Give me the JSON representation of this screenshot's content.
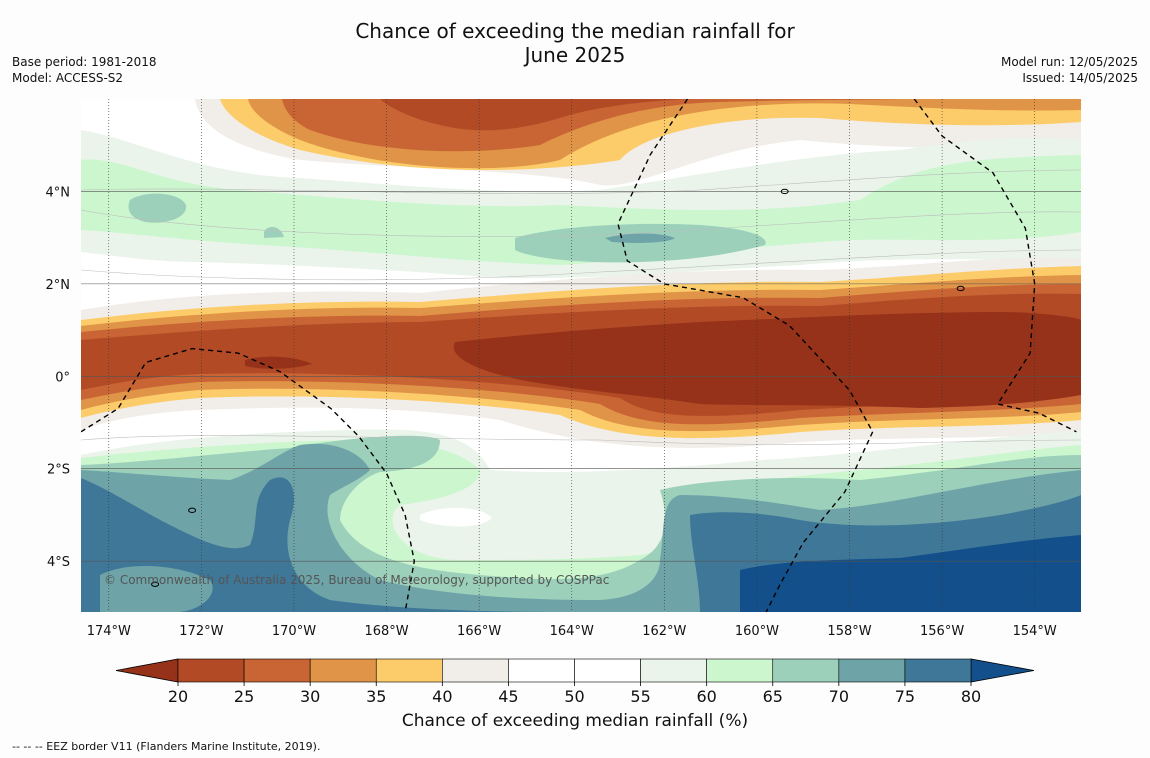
{
  "title": {
    "line1": "Chance of exceeding the median rainfall for",
    "line2": "June 2025"
  },
  "meta_left": {
    "base_period": "Base period: 1981-2018",
    "model": "Model: ACCESS-S2"
  },
  "meta_right": {
    "model_run": "Model run: 12/05/2025",
    "issued": "Issued: 14/05/2025"
  },
  "map": {
    "lon_range": [
      -174.6,
      -153.0
    ],
    "lat_range": [
      -5.1,
      6.0
    ],
    "lon_ticks": [
      {
        "v": -174,
        "label": "174°W"
      },
      {
        "v": -172,
        "label": "172°W"
      },
      {
        "v": -170,
        "label": "170°W"
      },
      {
        "v": -168,
        "label": "168°W"
      },
      {
        "v": -166,
        "label": "166°W"
      },
      {
        "v": -164,
        "label": "164°W"
      },
      {
        "v": -162,
        "label": "162°W"
      },
      {
        "v": -160,
        "label": "160°W"
      },
      {
        "v": -158,
        "label": "158°W"
      },
      {
        "v": -156,
        "label": "156°W"
      },
      {
        "v": -154,
        "label": "154°W"
      }
    ],
    "lat_ticks": [
      {
        "v": 4,
        "label": "4°N"
      },
      {
        "v": 2,
        "label": "2°N"
      },
      {
        "v": 0,
        "label": "0°"
      },
      {
        "v": -2,
        "label": "2°S"
      },
      {
        "v": -4,
        "label": "4°S"
      }
    ],
    "copyright": "© Commonwealth of Australia 2025, Bureau of Meteorology, supported by COSPPac",
    "eez_border": [
      [
        -174.6,
        -1.2
      ],
      [
        -173.8,
        -0.7
      ],
      [
        -173.2,
        0.3
      ],
      [
        -172.2,
        0.6
      ],
      [
        -171.2,
        0.5
      ],
      [
        -170.3,
        0.1
      ],
      [
        -169.2,
        -0.7
      ],
      [
        -168.6,
        -1.3
      ],
      [
        -168.0,
        -2.1
      ],
      [
        -167.6,
        -3.0
      ],
      [
        -167.4,
        -4.0
      ],
      [
        -167.6,
        -5.1
      ]
    ],
    "eez_border_2": [
      [
        -161.5,
        6.0
      ],
      [
        -162.3,
        4.8
      ],
      [
        -163.0,
        3.3
      ],
      [
        -162.8,
        2.5
      ],
      [
        -162.0,
        2.0
      ],
      [
        -160.3,
        1.7
      ],
      [
        -159.3,
        1.1
      ],
      [
        -158.0,
        -0.3
      ],
      [
        -157.5,
        -1.2
      ],
      [
        -158.1,
        -2.5
      ],
      [
        -159.0,
        -3.6
      ],
      [
        -159.5,
        -4.5
      ],
      [
        -159.8,
        -5.1
      ]
    ],
    "eez_border_3": [
      [
        -156.6,
        6.0
      ],
      [
        -156.0,
        5.2
      ],
      [
        -154.9,
        4.4
      ],
      [
        -154.2,
        3.2
      ],
      [
        -154.0,
        2.0
      ],
      [
        -154.1,
        0.5
      ],
      [
        -154.8,
        -0.6
      ],
      [
        -153.9,
        -0.8
      ],
      [
        -153.1,
        -1.2
      ]
    ],
    "islands": [
      {
        "lon": -155.6,
        "lat": 1.9
      },
      {
        "lon": -159.4,
        "lat": 4.0
      },
      {
        "lon": -172.2,
        "lat": -2.9
      },
      {
        "lon": -173.0,
        "lat": -4.5
      }
    ]
  },
  "colorbar": {
    "levels": [
      20,
      25,
      30,
      35,
      40,
      45,
      50,
      55,
      60,
      65,
      70,
      75,
      80
    ],
    "colors": [
      "#b34a26",
      "#c96434",
      "#e09447",
      "#fdcc6a",
      "#f1ede8",
      "#ffffff",
      "#ffffff",
      "#eaf4ea",
      "#cbf6ce",
      "#9dd0bb",
      "#6ea4a8",
      "#3f7799"
    ],
    "under_color": "#963219",
    "over_color": "#134f8a",
    "label": "Chance of exceeding median rainfall (%)"
  },
  "footnote": "--  --  -- EEZ border V11 (Flanders Marine Institute, 2019)."
}
